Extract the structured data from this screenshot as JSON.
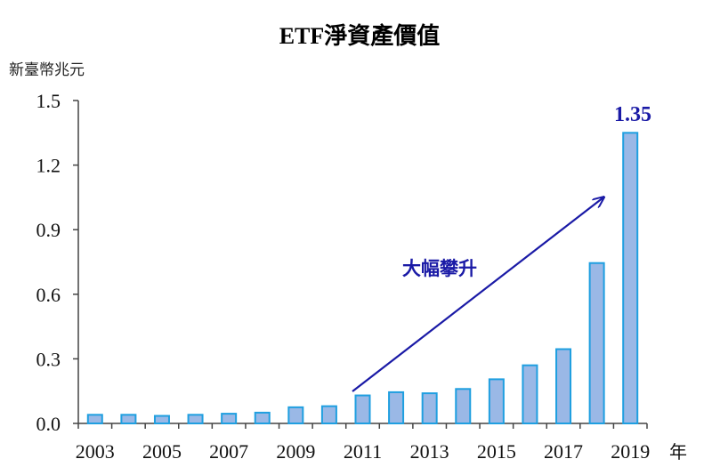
{
  "chart_data": {
    "type": "bar",
    "title": "ETF淨資產價值",
    "ylabel": "新臺幣兆元",
    "x_unit": "年",
    "ylim": [
      0,
      1.5
    ],
    "yticks": [
      "0.0",
      "0.3",
      "0.6",
      "0.9",
      "1.2",
      "1.5"
    ],
    "categories": [
      "2003",
      "2004",
      "2005",
      "2006",
      "2007",
      "2008",
      "2009",
      "2010",
      "2011",
      "2012",
      "2013",
      "2014",
      "2015",
      "2016",
      "2017",
      "2018",
      "2019"
    ],
    "values": [
      0.04,
      0.04,
      0.035,
      0.04,
      0.045,
      0.05,
      0.075,
      0.08,
      0.13,
      0.145,
      0.14,
      0.16,
      0.205,
      0.27,
      0.345,
      0.745,
      1.35
    ],
    "xtick_labels_shown": [
      "2003",
      "2005",
      "2007",
      "2009",
      "2011",
      "2013",
      "2015",
      "2017",
      "2019"
    ],
    "annotations": {
      "trend_label": "大幅攀升",
      "last_value_label": "1.35"
    },
    "colors": {
      "bar_fill": "#9ab8e6",
      "bar_stroke": "#1f9fe0",
      "annotation": "#1a1aa6",
      "axis": "#444444"
    },
    "grid": false,
    "legend": "none"
  }
}
